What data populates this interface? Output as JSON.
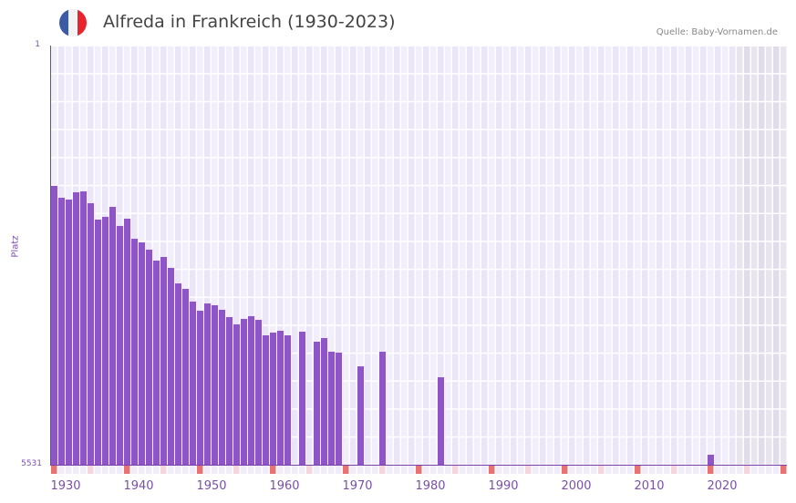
{
  "header": {
    "title": "Alfreda in Frankreich (1930-2023)",
    "source": "Quelle: Baby-Vornamen.de",
    "flag_colors": [
      "#3c5aa6",
      "#f3f3f5",
      "#e8242c"
    ]
  },
  "colors": {
    "bar": "#8e55c7",
    "axis": "#7a3fa8",
    "grid_a": "#f2eefb",
    "grid_b": "#ebe6f7",
    "future_a": "#e8e5ee",
    "future_b": "#e1dcea",
    "decade_marker": "#e57373",
    "half_decade_marker": "#f5d5de",
    "marker_bg": "#f0ecf8"
  },
  "chart_data": {
    "type": "bar",
    "title": "Alfreda in Frankreich (1930-2023)",
    "xlabel": "",
    "ylabel": "Platz",
    "y_inverted": true,
    "ylim": [
      1,
      5531
    ],
    "yticks": [
      "1",
      "5531"
    ],
    "xticks": [
      "1930",
      "1940",
      "1950",
      "1960",
      "1970",
      "1980",
      "1990",
      "2000",
      "2010",
      "2020"
    ],
    "x_range": [
      1930,
      2030
    ],
    "future_shaded_from": 2024,
    "grid": true,
    "source": "Quelle: Baby-Vornamen.de",
    "points": [
      {
        "year": 1930,
        "rank": 1852
      },
      {
        "year": 1931,
        "rank": 2009
      },
      {
        "year": 1932,
        "rank": 2033
      },
      {
        "year": 1933,
        "rank": 1937
      },
      {
        "year": 1934,
        "rank": 1925
      },
      {
        "year": 1935,
        "rank": 2081
      },
      {
        "year": 1936,
        "rank": 2297
      },
      {
        "year": 1937,
        "rank": 2261
      },
      {
        "year": 1938,
        "rank": 2129
      },
      {
        "year": 1939,
        "rank": 2381
      },
      {
        "year": 1940,
        "rank": 2285
      },
      {
        "year": 1941,
        "rank": 2550
      },
      {
        "year": 1942,
        "rank": 2598
      },
      {
        "year": 1943,
        "rank": 2694
      },
      {
        "year": 1944,
        "rank": 2838
      },
      {
        "year": 1945,
        "rank": 2790
      },
      {
        "year": 1946,
        "rank": 2934
      },
      {
        "year": 1947,
        "rank": 3139
      },
      {
        "year": 1948,
        "rank": 3211
      },
      {
        "year": 1949,
        "rank": 3379
      },
      {
        "year": 1950,
        "rank": 3499
      },
      {
        "year": 1951,
        "rank": 3403
      },
      {
        "year": 1952,
        "rank": 3427
      },
      {
        "year": 1953,
        "rank": 3487
      },
      {
        "year": 1954,
        "rank": 3583
      },
      {
        "year": 1955,
        "rank": 3679
      },
      {
        "year": 1956,
        "rank": 3607
      },
      {
        "year": 1957,
        "rank": 3571
      },
      {
        "year": 1958,
        "rank": 3620
      },
      {
        "year": 1959,
        "rank": 3824
      },
      {
        "year": 1960,
        "rank": 3788
      },
      {
        "year": 1961,
        "rank": 3764
      },
      {
        "year": 1962,
        "rank": 3824
      },
      {
        "year": 1964,
        "rank": 3776
      },
      {
        "year": 1966,
        "rank": 3908
      },
      {
        "year": 1967,
        "rank": 3860
      },
      {
        "year": 1968,
        "rank": 4040
      },
      {
        "year": 1969,
        "rank": 4052
      },
      {
        "year": 1972,
        "rank": 4233
      },
      {
        "year": 1975,
        "rank": 4040
      },
      {
        "year": 1983,
        "rank": 4377
      },
      {
        "year": 2020,
        "rank": 5399
      }
    ]
  }
}
